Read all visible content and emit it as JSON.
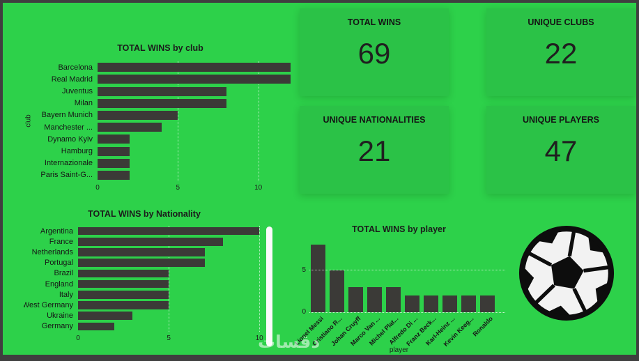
{
  "colors": {
    "background": "#2dd14a",
    "card": "#2bc247",
    "bar": "#3b3a37",
    "title_text": "#1b1b1b",
    "gridline": "rgba(255,255,255,0.65)",
    "scrollbar": "#fbfbfb"
  },
  "kpi_cards": [
    {
      "label": "TOTAL WINS",
      "value": "69"
    },
    {
      "label": "UNIQUE CLUBS",
      "value": "22"
    },
    {
      "label": "UNIQUE NATIONALITIES",
      "value": "21"
    },
    {
      "label": "UNIQUE PLAYERS",
      "value": "47"
    }
  ],
  "watermark": {
    "text": "دقسات"
  },
  "chart_data": [
    {
      "type": "bar",
      "orientation": "horizontal",
      "title": "TOTAL WINS by club",
      "category_axis_title": "club",
      "categories": [
        "Barcelona",
        "Real Madrid",
        "Juventus",
        "Milan",
        "Bayern Munich",
        "Manchester ...",
        "Dynamo Kyiv",
        "Hamburg",
        "Internazionale",
        "Paris Saint-G..."
      ],
      "values": [
        12,
        12,
        8,
        8,
        5,
        4,
        2,
        2,
        2,
        2
      ],
      "ticks": [
        0,
        5,
        10
      ],
      "axis_max": 12.4,
      "grid": "dotted-vertical"
    },
    {
      "type": "bar",
      "orientation": "horizontal",
      "title": "TOTAL WINS by Nationality",
      "category_axis_title": "",
      "categories": [
        "Argentina",
        "France",
        "Netherlands",
        "Portugal",
        "Brazil",
        "England",
        "Italy",
        "West Germany",
        "Ukraine",
        "Germany"
      ],
      "values": [
        10,
        8,
        7,
        7,
        5,
        5,
        5,
        5,
        3,
        2
      ],
      "ticks": [
        0,
        5,
        10
      ],
      "axis_max": 10.3,
      "grid": "dotted-vertical",
      "scrollbar": true
    },
    {
      "type": "bar",
      "orientation": "vertical",
      "title": "TOTAL WINS by player",
      "category_axis_title": "player",
      "categories": [
        "Lionel Messi",
        "Cristiano R...",
        "Johan Cruyff",
        "Marco Van ...",
        "Michel Plat...",
        "Alfredo Di ...",
        "Franz Beck...",
        "Karl-Heinz ...",
        "Kevin Keeg...",
        "Ronaldo"
      ],
      "values": [
        8,
        5,
        3,
        3,
        3,
        2,
        2,
        2,
        2,
        2
      ],
      "ticks": [
        0,
        5
      ],
      "axis_max": 8.6,
      "grid": "dotted-horizontal"
    }
  ]
}
